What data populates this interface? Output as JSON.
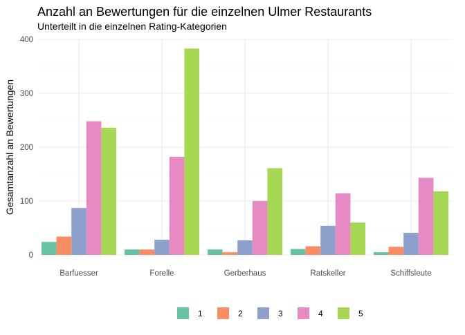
{
  "chart_data": {
    "type": "bar",
    "title": "Anzahl an Bewertungen für die einzelnen Ulmer Restaurants",
    "subtitle": "Unterteilt in die einzelnen Rating-Kategorien",
    "xlabel": "",
    "ylabel": "Gesamtanzahl an Bewertungen",
    "ylim": [
      0,
      400
    ],
    "yticks": [
      0,
      100,
      200,
      300,
      400
    ],
    "grid": true,
    "legend_position": "bottom",
    "categories": [
      "Barfuesser",
      "Forelle",
      "Gerberhaus",
      "Ratskeller",
      "Schiffsleute"
    ],
    "series": [
      {
        "name": "1",
        "color": "#66c2a5",
        "values": [
          24,
          10,
          10,
          11,
          5
        ]
      },
      {
        "name": "2",
        "color": "#fc8d62",
        "values": [
          34,
          10,
          5,
          16,
          15
        ]
      },
      {
        "name": "3",
        "color": "#8da0cb",
        "values": [
          87,
          28,
          27,
          54,
          41
        ]
      },
      {
        "name": "4",
        "color": "#e78ac3",
        "values": [
          248,
          182,
          100,
          114,
          143
        ]
      },
      {
        "name": "5",
        "color": "#a6d854",
        "values": [
          236,
          383,
          161,
          60,
          118
        ]
      }
    ]
  }
}
